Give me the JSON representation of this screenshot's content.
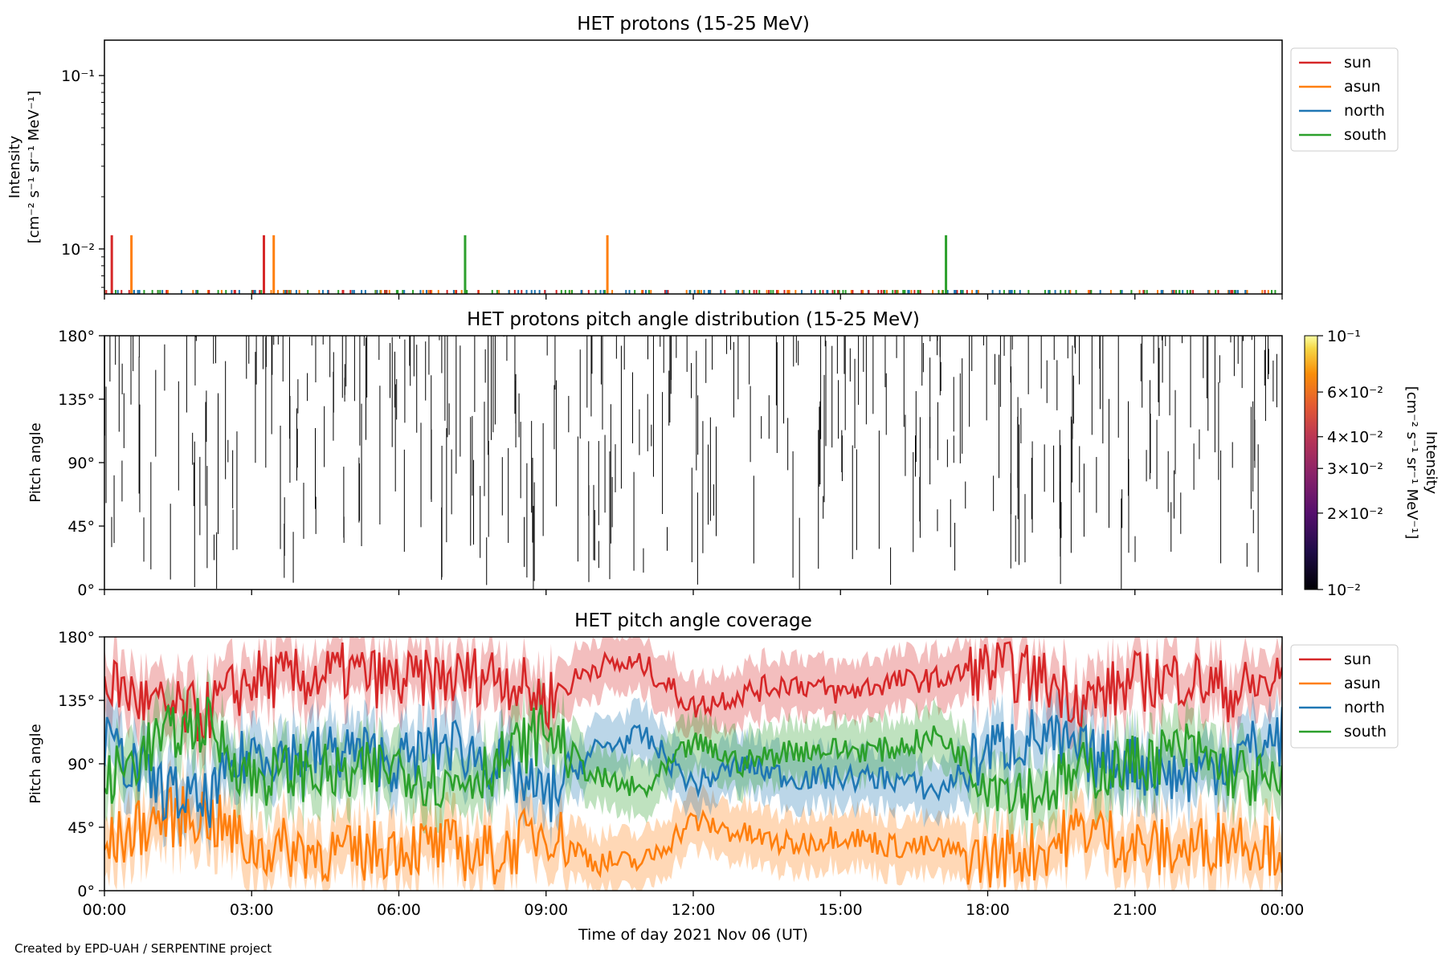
{
  "credit": "Created by EPD-UAH / SERPENTINE project",
  "colors": {
    "sun": "#d62728",
    "asun": "#ff7f0e",
    "north": "#1f77b4",
    "south": "#2ca02c"
  },
  "chart_data": [
    {
      "type": "line",
      "title": "HET protons (15-25 MeV)",
      "ylabel": "Intensity",
      "ylabel2": "[cm⁻² s⁻¹ sr⁻¹ MeV⁻¹]",
      "yscale": "log",
      "ylim": [
        0.0055,
        0.16
      ],
      "yticks": [
        {
          "value": 0.1,
          "label": "10⁻¹"
        },
        {
          "value": 0.01,
          "label": "10⁻²"
        }
      ],
      "xlim_hours": [
        0,
        24
      ],
      "legend": [
        "sun",
        "asun",
        "north",
        "south"
      ],
      "legend_position": "outside-right",
      "baseline_value": 0.0058,
      "spikes": [
        {
          "series": "sun",
          "hour": 0.15,
          "value": 0.012
        },
        {
          "series": "asun",
          "hour": 0.55,
          "value": 0.012
        },
        {
          "series": "sun",
          "hour": 3.25,
          "value": 0.012
        },
        {
          "series": "asun",
          "hour": 3.45,
          "value": 0.012
        },
        {
          "series": "south",
          "hour": 7.35,
          "value": 0.012
        },
        {
          "series": "asun",
          "hour": 10.25,
          "value": 0.012
        },
        {
          "series": "south",
          "hour": 17.15,
          "value": 0.012
        }
      ]
    },
    {
      "type": "heatmap",
      "title": "HET protons pitch angle distribution (15-25 MeV)",
      "ylabel": "Pitch angle",
      "ylim": [
        0,
        180
      ],
      "yticks": [
        "0°",
        "45°",
        "90°",
        "135°",
        "180°"
      ],
      "colorbar": {
        "label": "Intensity",
        "label2": "[cm⁻² s⁻¹ sr⁻¹ MeV⁻¹]",
        "scale": "log",
        "range": [
          0.01,
          0.1
        ],
        "colormap": "inferno",
        "ticks": [
          {
            "value": 0.1,
            "label": "10⁻¹"
          },
          {
            "value": 0.06,
            "label": "6×10⁻²"
          },
          {
            "value": 0.04,
            "label": "4×10⁻²"
          },
          {
            "value": 0.03,
            "label": "3×10⁻²"
          },
          {
            "value": 0.02,
            "label": "2×10⁻²"
          },
          {
            "value": 0.01,
            "label": "10⁻²"
          }
        ]
      }
    },
    {
      "type": "area",
      "title": "HET pitch angle coverage",
      "ylabel": "Pitch angle",
      "xlabel": "Time of day 2021 Nov 06 (UT)",
      "ylim": [
        0,
        180
      ],
      "yticks": [
        "0°",
        "45°",
        "90°",
        "135°",
        "180°"
      ],
      "xticks": [
        "00:00",
        "03:00",
        "06:00",
        "09:00",
        "12:00",
        "15:00",
        "18:00",
        "21:00",
        "00:00"
      ],
      "legend": [
        "sun",
        "asun",
        "north",
        "south"
      ],
      "legend_position": "outside-right",
      "x": [
        0,
        1,
        2,
        3,
        4,
        5,
        6,
        7,
        8,
        9,
        10,
        11,
        12,
        13,
        14,
        15,
        16,
        17,
        18,
        19,
        20,
        21,
        22,
        23,
        24
      ],
      "series": [
        {
          "name": "sun",
          "values": [
            150,
            130,
            125,
            150,
            150,
            155,
            148,
            150,
            155,
            135,
            160,
            160,
            130,
            140,
            148,
            140,
            148,
            150,
            158,
            152,
            135,
            148,
            152,
            140,
            150
          ]
        },
        {
          "name": "asun",
          "values": [
            30,
            50,
            55,
            30,
            30,
            25,
            32,
            30,
            25,
            45,
            20,
            20,
            50,
            40,
            32,
            40,
            32,
            30,
            22,
            28,
            45,
            32,
            28,
            40,
            30
          ]
        },
        {
          "name": "north",
          "values": [
            105,
            75,
            60,
            100,
            95,
            100,
            90,
            105,
            90,
            65,
            100,
            110,
            75,
            90,
            80,
            80,
            80,
            70,
            100,
            110,
            95,
            90,
            80,
            95,
            110
          ]
        },
        {
          "name": "south",
          "values": [
            75,
            105,
            120,
            80,
            85,
            80,
            90,
            75,
            90,
            115,
            80,
            70,
            105,
            90,
            100,
            100,
            100,
            110,
            80,
            70,
            85,
            90,
            100,
            85,
            70
          ]
        }
      ]
    }
  ]
}
